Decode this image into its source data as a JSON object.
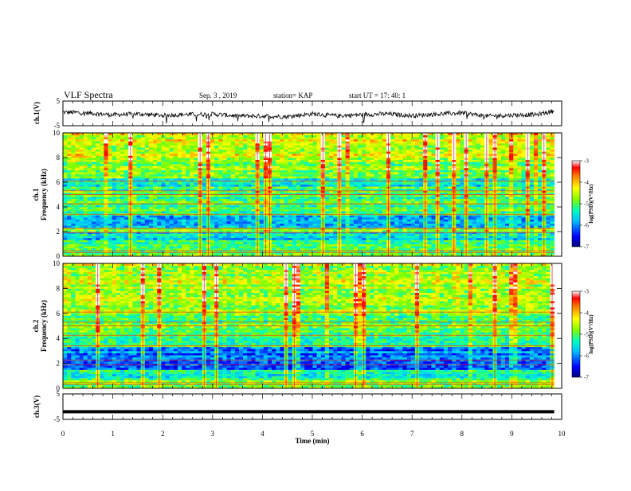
{
  "header": {
    "title": "VLF Spectra",
    "date": "Sep. 3  , 2019",
    "station": "station= KAP",
    "start_time": "start  UT  =   17: 40: 1"
  },
  "chart_data": [
    {
      "type": "line",
      "panel": "ch1-waveform",
      "ylabel": "ch.1(V)",
      "ylim": [
        -5,
        5
      ],
      "yticks": [
        "5",
        "-5"
      ],
      "x": [
        0,
        0.5,
        1,
        1.5,
        2,
        2.5,
        3,
        3.5,
        4,
        4.5,
        5,
        5.5,
        6,
        6.5,
        7,
        7.5,
        8,
        8.5,
        9,
        9.5,
        9.85
      ],
      "values": [
        0.5,
        0.2,
        -0.6,
        -0.2,
        -0.8,
        -0.4,
        -0.3,
        -1.0,
        -1.1,
        -1.3,
        -0.2,
        -1.0,
        -0.5,
        -0.2,
        -0.9,
        -0.3,
        0.2,
        -1.1,
        -0.7,
        -0.5,
        1.0
      ],
      "color": "#000000"
    },
    {
      "type": "heatmap",
      "panel": "ch1-spectrogram",
      "ylabel": "ch.1\nFrequency  (kHz)",
      "ylim": [
        0,
        10
      ],
      "yticks": [
        "0",
        "2",
        "4",
        "6",
        "8",
        "10"
      ],
      "xlim": [
        0,
        9.85
      ],
      "frequency_band_means_log_psd": [
        {
          "freq_range": [
            0,
            0.7
          ],
          "value": -4.9
        },
        {
          "freq_range": [
            0.7,
            1.4
          ],
          "value": -5.2
        },
        {
          "freq_range": [
            1.4,
            2.0
          ],
          "value": -5.7
        },
        {
          "freq_range": [
            2.0,
            2.4
          ],
          "value": -5.0
        },
        {
          "freq_range": [
            2.4,
            3.4
          ],
          "value": -6.0
        },
        {
          "freq_range": [
            3.4,
            5.6
          ],
          "value": -5.2
        },
        {
          "freq_range": [
            5.6,
            6.4
          ],
          "value": -5.6
        },
        {
          "freq_range": [
            6.4,
            8.0
          ],
          "value": -5.0
        },
        {
          "freq_range": [
            8.0,
            10.0
          ],
          "value": -4.6
        }
      ],
      "colorbar": {
        "label": "log(PSD)(V²/Hz)",
        "range": [
          -7,
          -3
        ],
        "ticks": [
          "-3",
          "-4",
          "-5",
          "-6",
          "-7"
        ]
      }
    },
    {
      "type": "heatmap",
      "panel": "ch2-spectrogram",
      "ylabel": "ch.2\nFrequency  (kHz)",
      "ylim": [
        0,
        10
      ],
      "yticks": [
        "0",
        "2",
        "4",
        "6",
        "8",
        "10"
      ],
      "xlim": [
        0,
        9.85
      ],
      "frequency_band_means_log_psd": [
        {
          "freq_range": [
            0,
            0.7
          ],
          "value": -5.0
        },
        {
          "freq_range": [
            0.7,
            1.5
          ],
          "value": -5.4
        },
        {
          "freq_range": [
            1.5,
            3.4
          ],
          "value": -6.1
        },
        {
          "freq_range": [
            3.4,
            4.2
          ],
          "value": -5.3
        },
        {
          "freq_range": [
            4.2,
            6.0
          ],
          "value": -5.1
        },
        {
          "freq_range": [
            6.0,
            10.0
          ],
          "value": -4.8
        }
      ],
      "colorbar": {
        "label": "log(PSD)(V²/Hz)",
        "range": [
          -7,
          -3
        ],
        "ticks": [
          "-3",
          "-4",
          "-5",
          "-6",
          "-7"
        ]
      }
    },
    {
      "type": "line",
      "panel": "ch3-waveform",
      "ylabel": "ch.3(V)",
      "ylim": [
        -5,
        5
      ],
      "yticks": [
        "5",
        "-5"
      ],
      "x": [
        0,
        9.85
      ],
      "values": [
        -2.0,
        -2.0
      ],
      "color": "#000000"
    }
  ],
  "x_axis": {
    "label": "Time  (min)",
    "range": [
      0,
      10
    ],
    "ticks": [
      "0",
      "1",
      "2",
      "3",
      "4",
      "5",
      "6",
      "7",
      "8",
      "9",
      "10"
    ]
  },
  "colormap": [
    "#00007f",
    "#0000ff",
    "#007fff",
    "#00ffff",
    "#7fff7f",
    "#ffff00",
    "#ff7f00",
    "#ff0000",
    "#7f0000"
  ]
}
